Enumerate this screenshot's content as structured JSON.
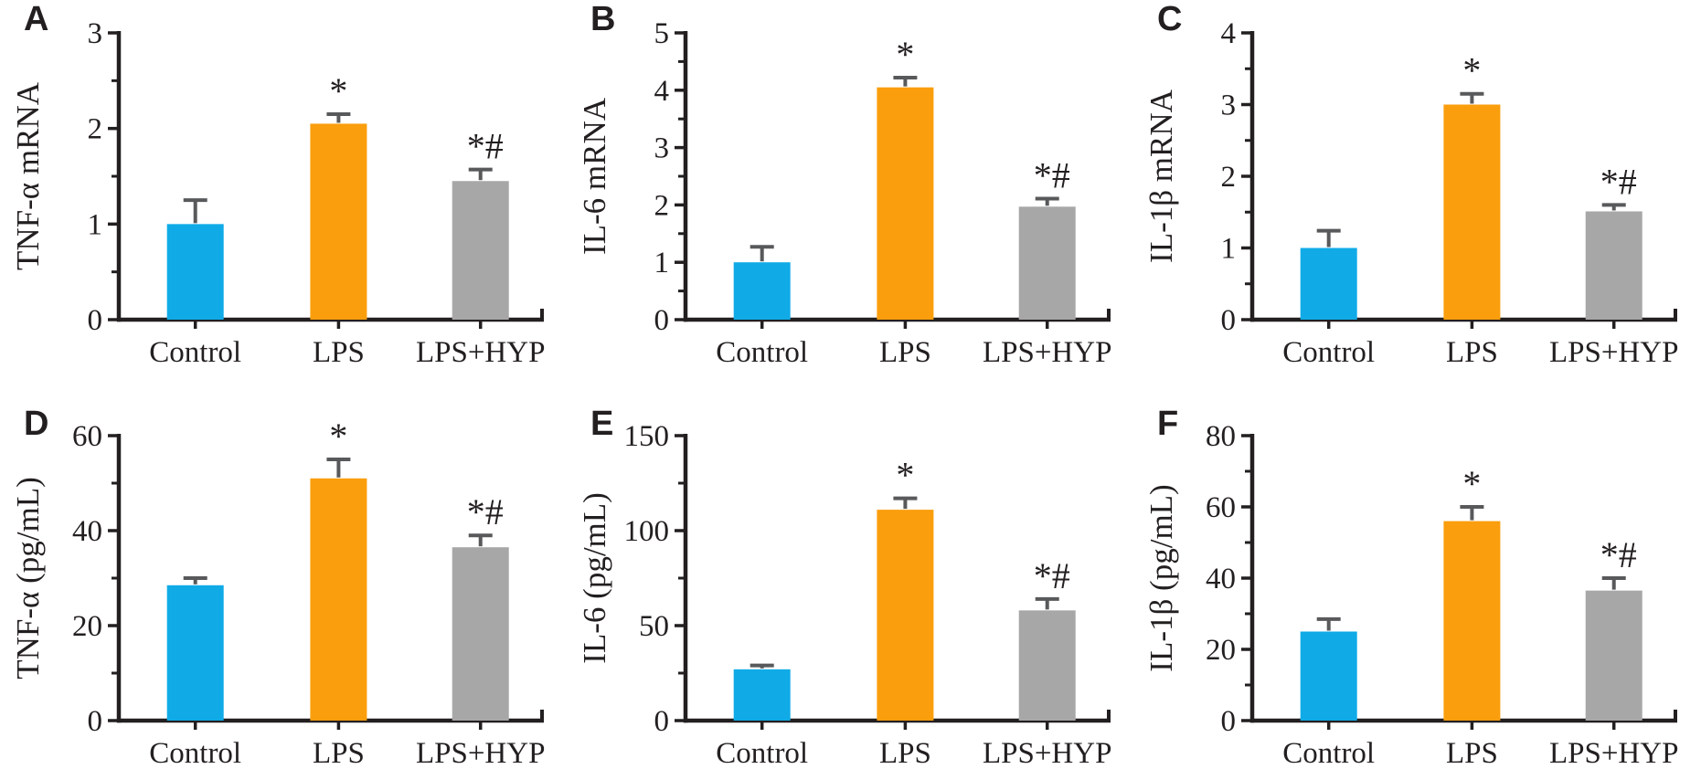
{
  "style": {
    "bar_colors": [
      "#10abe7",
      "#fa9e0d",
      "#a8a7a7"
    ],
    "error_bar_color": "#58595b",
    "axis_color": "#231f20",
    "text_color": "#231f20",
    "background": "#ffffff"
  },
  "chart_data": [
    {
      "type": "bar",
      "panel_label": "A",
      "title": "",
      "xlabel": "",
      "ylabel": "TNF-α mRNA",
      "categories": [
        "Control",
        "LPS",
        "LPS+HYP"
      ],
      "values": [
        1.0,
        2.05,
        1.45
      ],
      "errors": [
        0.25,
        0.1,
        0.12
      ],
      "sig_labels": [
        "",
        "*",
        "*#"
      ],
      "ylim": [
        0,
        3
      ],
      "yticks": [
        0,
        1,
        2,
        3
      ],
      "minor_tick_step": 0.5,
      "grid": false,
      "legend": false
    },
    {
      "type": "bar",
      "panel_label": "B",
      "title": "",
      "xlabel": "",
      "ylabel": "IL-6 mRNA",
      "categories": [
        "Control",
        "LPS",
        "LPS+HYP"
      ],
      "values": [
        1.0,
        4.05,
        1.97
      ],
      "errors": [
        0.27,
        0.17,
        0.14
      ],
      "sig_labels": [
        "",
        "*",
        "*#"
      ],
      "ylim": [
        0,
        5
      ],
      "yticks": [
        0,
        1,
        2,
        3,
        4,
        5
      ],
      "minor_tick_step": 0.5,
      "grid": false,
      "legend": false
    },
    {
      "type": "bar",
      "panel_label": "C",
      "title": "",
      "xlabel": "",
      "ylabel": "IL-1β mRNA",
      "categories": [
        "Control",
        "LPS",
        "LPS+HYP"
      ],
      "values": [
        1.0,
        3.0,
        1.51
      ],
      "errors": [
        0.24,
        0.15,
        0.09
      ],
      "sig_labels": [
        "",
        "*",
        "*#"
      ],
      "ylim": [
        0,
        4
      ],
      "yticks": [
        0,
        1,
        2,
        3,
        4
      ],
      "minor_tick_step": 0.5,
      "grid": false,
      "legend": false
    },
    {
      "type": "bar",
      "panel_label": "D",
      "title": "",
      "xlabel": "",
      "ylabel": "TNF-α (pg/mL)",
      "categories": [
        "Control",
        "LPS",
        "LPS+HYP"
      ],
      "values": [
        28.5,
        51,
        36.5
      ],
      "errors": [
        1.5,
        4,
        2.5
      ],
      "sig_labels": [
        "",
        "*",
        "*#"
      ],
      "ylim": [
        0,
        60
      ],
      "yticks": [
        0,
        20,
        40,
        60
      ],
      "minor_tick_step": 10,
      "grid": false,
      "legend": false
    },
    {
      "type": "bar",
      "panel_label": "E",
      "title": "",
      "xlabel": "",
      "ylabel": "IL-6 (pg/mL)",
      "categories": [
        "Control",
        "LPS",
        "LPS+HYP"
      ],
      "values": [
        27,
        111,
        58
      ],
      "errors": [
        2,
        6,
        6
      ],
      "sig_labels": [
        "",
        "*",
        "*#"
      ],
      "ylim": [
        0,
        150
      ],
      "yticks": [
        0,
        50,
        100,
        150
      ],
      "minor_tick_step": 25,
      "grid": false,
      "legend": false
    },
    {
      "type": "bar",
      "panel_label": "F",
      "title": "",
      "xlabel": "",
      "ylabel": "IL-1β (pg/mL)",
      "categories": [
        "Control",
        "LPS",
        "LPS+HYP"
      ],
      "values": [
        25,
        56,
        36.5
      ],
      "errors": [
        3.5,
        4,
        3.5
      ],
      "sig_labels": [
        "",
        "*",
        "*#"
      ],
      "ylim": [
        0,
        80
      ],
      "yticks": [
        0,
        20,
        40,
        60,
        80
      ],
      "minor_tick_step": 10,
      "grid": false,
      "legend": false
    }
  ]
}
